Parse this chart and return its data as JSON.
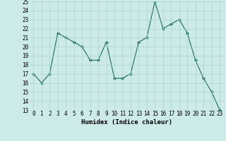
{
  "x": [
    0,
    1,
    2,
    3,
    4,
    5,
    6,
    7,
    8,
    9,
    10,
    11,
    12,
    13,
    14,
    15,
    16,
    17,
    18,
    19,
    20,
    21,
    22,
    23
  ],
  "y": [
    17,
    16,
    17,
    21.5,
    21,
    20.5,
    20,
    18.5,
    18.5,
    20.5,
    16.5,
    16.5,
    17,
    20.5,
    21,
    25,
    22,
    22.5,
    23,
    21.5,
    18.5,
    16.5,
    15,
    13
  ],
  "line_color": "#1a6b5a",
  "bg_color": "#cceae7",
  "grid_color": "#aad4d0",
  "xlabel": "Humidex (Indice chaleur)",
  "xlim": [
    -0.5,
    23.5
  ],
  "ylim": [
    13,
    25
  ],
  "yticks": [
    13,
    14,
    15,
    16,
    17,
    18,
    19,
    20,
    21,
    22,
    23,
    24,
    25
  ],
  "xticks": [
    0,
    1,
    2,
    3,
    4,
    5,
    6,
    7,
    8,
    9,
    10,
    11,
    12,
    13,
    14,
    15,
    16,
    17,
    18,
    19,
    20,
    21,
    22,
    23
  ],
  "tick_fontsize": 5.5,
  "xlabel_fontsize": 6.5
}
